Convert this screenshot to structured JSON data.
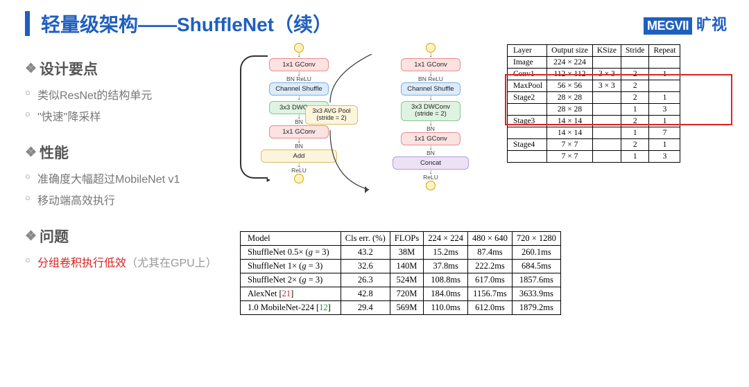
{
  "title": "轻量级架构——ShuffleNet（续）",
  "logo": {
    "en": "MEGVII",
    "cn": "旷视"
  },
  "sections": {
    "design": {
      "heading": "设计要点",
      "items": [
        "类似ResNet的结构单元",
        "\"快速\"降采样"
      ]
    },
    "perf": {
      "heading": "性能",
      "items": [
        "准确度大幅超过MobileNet v1",
        "移动端高效执行"
      ]
    },
    "prob": {
      "heading": "问题",
      "red": "分组卷积执行低效",
      "paren": "（尤其在GPU上）"
    }
  },
  "flow_labels": {
    "gconv1": "1x1 GConv",
    "bnrelu": "BN ReLU",
    "chshuf": "Channel Shuffle",
    "dwconv": "3x3 DWConv",
    "dwconv_s2": "3x3 DWConv\n(stride = 2)",
    "bn": "BN",
    "gconv2": "1x1 GConv",
    "add": "Add",
    "concat": "Concat",
    "avgpool": "3x3 AVG Pool\n(stride = 2)",
    "relu": "ReLU"
  },
  "colors": {
    "accent": "#1f5fbf",
    "red_hl": "#d22222",
    "block_red": "#fde2e2",
    "block_blue": "#dcecfa",
    "block_green": "#dff3e2",
    "block_yellow": "#fdf5db",
    "block_purple": "#ece2f6"
  },
  "table1": {
    "headers": [
      "Layer",
      "Output size",
      "KSize",
      "Stride",
      "Repeat"
    ],
    "rows": [
      [
        "Image",
        "224 × 224",
        "",
        "",
        ""
      ],
      [
        "Conv1",
        "112 × 112",
        "3 × 3",
        "2",
        "1"
      ],
      [
        "MaxPool",
        "56 × 56",
        "3 × 3",
        "2",
        ""
      ],
      [
        "Stage2",
        "28 × 28",
        "",
        "2",
        "1"
      ],
      [
        "",
        "28 × 28",
        "",
        "1",
        "3"
      ],
      [
        "Stage3",
        "14 × 14",
        "",
        "2",
        "1"
      ],
      [
        "",
        "14 × 14",
        "",
        "1",
        "7"
      ],
      [
        "Stage4",
        "7 × 7",
        "",
        "2",
        "1"
      ],
      [
        "",
        "7 × 7",
        "",
        "1",
        "3"
      ]
    ],
    "redbox_rows": [
      0,
      1,
      2,
      3
    ]
  },
  "table2": {
    "headers": [
      "Model",
      "Cls err. (%)",
      "FLOPs",
      "224 × 224",
      "480 × 640",
      "720 × 1280"
    ],
    "rows": [
      [
        "ShuffleNet 0.5× (g = 3)",
        "43.2",
        "38M",
        "15.2ms",
        "87.4ms",
        "260.1ms"
      ],
      [
        "ShuffleNet 1× (g = 3)",
        "32.6",
        "140M",
        "37.8ms",
        "222.2ms",
        "684.5ms"
      ],
      [
        "ShuffleNet 2× (g = 3)",
        "26.3",
        "524M",
        "108.8ms",
        "617.0ms",
        "1857.6ms"
      ],
      [
        "AlexNet [21]",
        "42.8",
        "720M",
        "184.0ms",
        "1156.7ms",
        "3633.9ms"
      ],
      [
        "1.0 MobileNet-224 [12]",
        "29.4",
        "569M",
        "110.0ms",
        "612.0ms",
        "1879.2ms"
      ]
    ],
    "cite_red": "21",
    "cite_green": "12"
  }
}
